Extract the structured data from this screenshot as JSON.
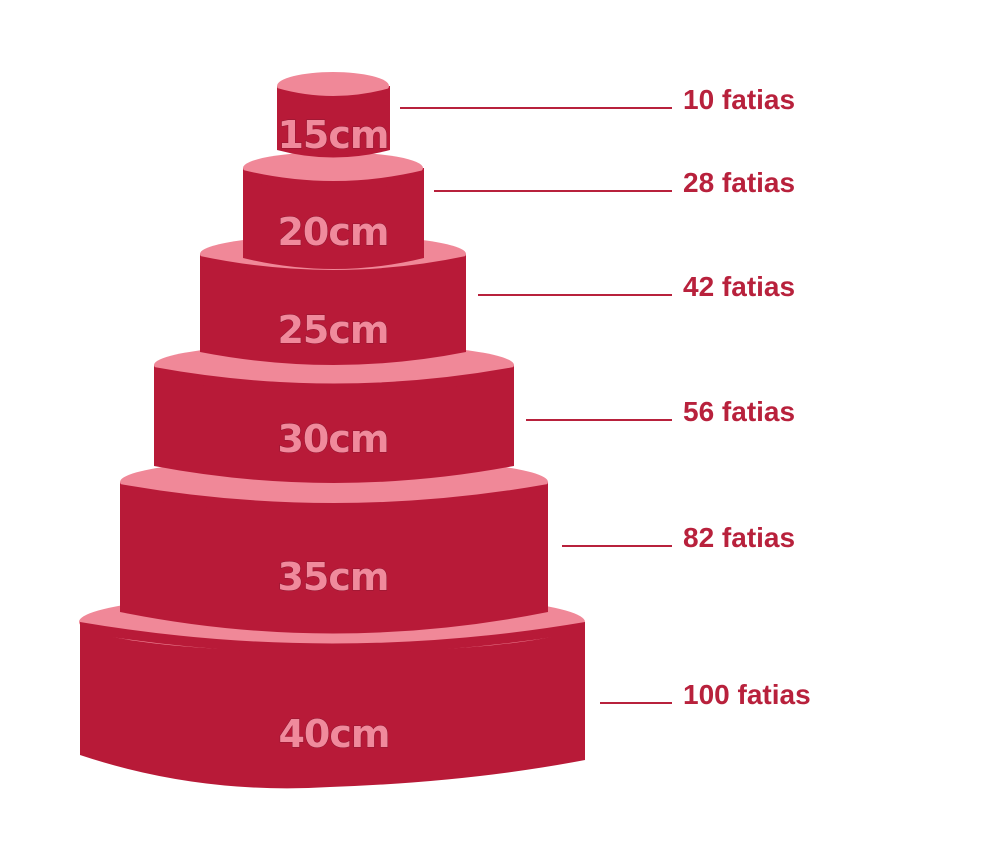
{
  "colors": {
    "cake_side": "#b81a38",
    "cake_top": "#f08898",
    "tier_text": "#f08a9c",
    "label_text": "#b8213c"
  },
  "tiers": [
    {
      "size": "15cm",
      "slices": "10 fatias"
    },
    {
      "size": "20cm",
      "slices": "28 fatias"
    },
    {
      "size": "25cm",
      "slices": "42 fatias"
    },
    {
      "size": "30cm",
      "slices": "56 fatias"
    },
    {
      "size": "35cm",
      "slices": "82 fatias"
    },
    {
      "size": "40cm",
      "slices": "100 fatias"
    }
  ]
}
